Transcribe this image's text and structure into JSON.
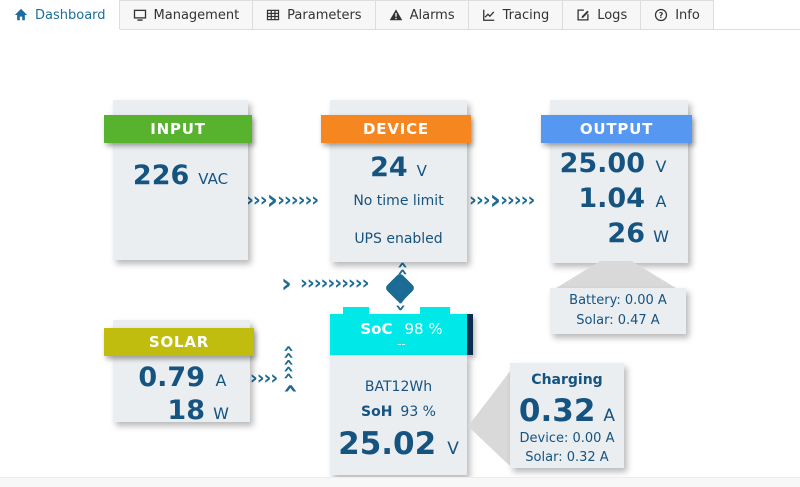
{
  "tabs": [
    {
      "label": "Dashboard",
      "icon": "home-icon",
      "active": true
    },
    {
      "label": "Management",
      "icon": "monitor-icon",
      "active": false
    },
    {
      "label": "Parameters",
      "icon": "table-icon",
      "active": false
    },
    {
      "label": "Alarms",
      "icon": "warning-icon",
      "active": false
    },
    {
      "label": "Tracing",
      "icon": "chart-icon",
      "active": false
    },
    {
      "label": "Logs",
      "icon": "edit-icon",
      "active": false
    },
    {
      "label": "Info",
      "icon": "help-icon",
      "active": false
    }
  ],
  "panels": {
    "input": {
      "title": "INPUT",
      "value": "226",
      "unit": "VAC"
    },
    "device": {
      "title": "DEVICE",
      "value": "24",
      "unit": "V",
      "time_limit": "No time limit",
      "ups_status": "UPS enabled"
    },
    "output": {
      "title": "OUTPUT",
      "voltage": "25.00",
      "voltage_unit": "V",
      "current": "1.04",
      "current_unit": "A",
      "power": "26",
      "power_unit": "W",
      "detail": {
        "battery": "Battery: 0.00 A",
        "solar": "Solar: 0.47 A"
      }
    },
    "solar": {
      "title": "SOLAR",
      "current": "0.79",
      "current_unit": "A",
      "power": "18",
      "power_unit": "W"
    },
    "battery": {
      "soc_label": "SoC",
      "soc_value": "98 %",
      "soc_sub": "--",
      "model": "BAT12Wh",
      "soh_label": "SoH",
      "soh_value": "93 %",
      "voltage": "25.02",
      "voltage_unit": "V"
    },
    "charging": {
      "title": "Charging",
      "value": "0.32",
      "unit": "A",
      "device": "Device: 0.00 A",
      "solar": "Solar: 0.32 A"
    }
  },
  "colors": {
    "input_accent": "#57b32d",
    "device_accent": "#f6861f",
    "output_accent": "#5697f2",
    "solar_accent": "#c0bd0e",
    "battery_accent": "#00e8e8",
    "battery_stripe": "#0b2d4d",
    "text_primary": "#155380",
    "arrow": "#1b6b94",
    "active_tab_text": "#1a6d9e"
  }
}
